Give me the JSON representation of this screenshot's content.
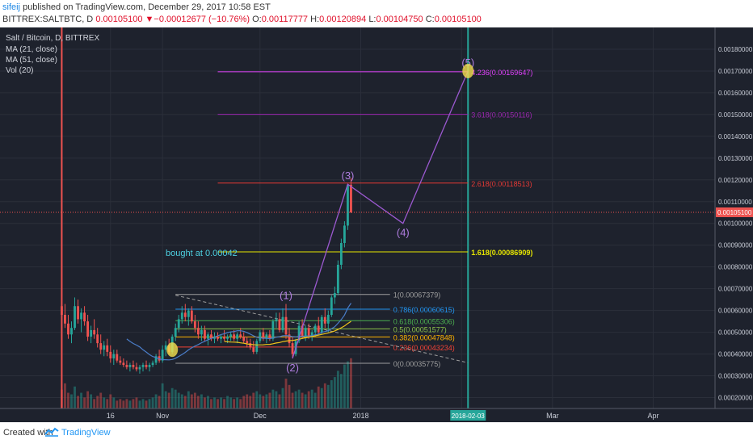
{
  "header": {
    "author": "sifeij",
    "published": " published on TradingView.com, December 29, 2017 10:58 EST",
    "symbol": "BITTREX:SALTBTC, D",
    "last": "0.00105100",
    "change_arrow": "▼",
    "change": "−0.00012677 (−10.76%)",
    "o_label": "O:",
    "o": "0.00117777",
    "h_label": "H:",
    "h": "0.00120894",
    "l_label": "L:",
    "l": "0.00104750",
    "c_label": "C:",
    "c": "0.00105100"
  },
  "legend": {
    "title": "Salt / Bitcoin, D, BITTREX",
    "ma21": "MA (21, close)",
    "ma51": "MA (51, close)",
    "vol": "Vol (20)"
  },
  "footer": {
    "created_with": "Created with",
    "brand": "TradingView"
  },
  "colors": {
    "background": "#1e222d",
    "grid": "#2b2f3a",
    "axis_text": "#c8ccd6",
    "candle_up": "#26a69a",
    "candle_down": "#ef5350",
    "ma21": "#4a7dc9",
    "ma51": "#f0c419",
    "wave": "#9b59d0",
    "fib_green": "#2e7d32"
  },
  "chart_data": {
    "type": "candlestick",
    "symbol": "SALTBTC",
    "interval": "D",
    "exchange": "BITTREX",
    "ylim": [
      0.00015,
      0.0019
    ],
    "y_ticks": [
      "0.00180000",
      "0.00170000",
      "0.00160000",
      "0.00150000",
      "0.00140000",
      "0.00130000",
      "0.00120000",
      "0.00110000",
      "0.00100000",
      "0.00090000",
      "0.00080000",
      "0.00070000",
      "0.00060000",
      "0.00050000",
      "0.00040000",
      "0.00030000",
      "0.00020000"
    ],
    "x_ticks": [
      "16",
      "Nov",
      "Dec",
      "2018",
      "Feb",
      "Mar",
      "Apr"
    ],
    "x_tick_dates": [
      "2017-10-16",
      "2017-11-01",
      "2017-12-01",
      "2018-01-01",
      "2018-02-01",
      "2018-03-01",
      "2018-04-01"
    ],
    "xlim": [
      "2017-09-12",
      "2018-04-20"
    ],
    "vertical_marker": {
      "date": "2018-02-03",
      "label": "2018-02-03",
      "color": "#26a69a"
    },
    "start_marker": {
      "date": "2017-10-01",
      "color": "#ef5350"
    },
    "current_price": {
      "value": 0.001051,
      "label": "0.00105100"
    },
    "candles": [
      {
        "d": "2017-10-01",
        "o": 0.00062,
        "h": 0.00069,
        "l": 0.00056,
        "c": 0.00058
      },
      {
        "d": "2017-10-02",
        "o": 0.00058,
        "h": 0.00063,
        "l": 0.00052,
        "c": 0.00054
      },
      {
        "d": "2017-10-03",
        "o": 0.00054,
        "h": 0.00058,
        "l": 0.00047,
        "c": 0.00049
      },
      {
        "d": "2017-10-04",
        "o": 0.00049,
        "h": 0.00055,
        "l": 0.00045,
        "c": 0.00052
      },
      {
        "d": "2017-10-05",
        "o": 0.00052,
        "h": 0.00066,
        "l": 0.00051,
        "c": 0.00062
      },
      {
        "d": "2017-10-06",
        "o": 0.00062,
        "h": 0.00065,
        "l": 0.00054,
        "c": 0.00056
      },
      {
        "d": "2017-10-07",
        "o": 0.00056,
        "h": 0.00061,
        "l": 0.0005,
        "c": 0.00059
      },
      {
        "d": "2017-10-08",
        "o": 0.00059,
        "h": 0.00062,
        "l": 0.00053,
        "c": 0.00055
      },
      {
        "d": "2017-10-09",
        "o": 0.00055,
        "h": 0.00058,
        "l": 0.00046,
        "c": 0.00048
      },
      {
        "d": "2017-10-10",
        "o": 0.00048,
        "h": 0.00053,
        "l": 0.00045,
        "c": 0.00051
      },
      {
        "d": "2017-10-11",
        "o": 0.00051,
        "h": 0.00056,
        "l": 0.00047,
        "c": 0.00049
      },
      {
        "d": "2017-10-12",
        "o": 0.00049,
        "h": 0.00052,
        "l": 0.00043,
        "c": 0.00045
      },
      {
        "d": "2017-10-13",
        "o": 0.00045,
        "h": 0.00049,
        "l": 0.0004,
        "c": 0.00042
      },
      {
        "d": "2017-10-14",
        "o": 0.00042,
        "h": 0.00046,
        "l": 0.00039,
        "c": 0.00044
      },
      {
        "d": "2017-10-15",
        "o": 0.00044,
        "h": 0.00047,
        "l": 0.00039,
        "c": 0.00041
      },
      {
        "d": "2017-10-16",
        "o": 0.00041,
        "h": 0.00044,
        "l": 0.00036,
        "c": 0.00038
      },
      {
        "d": "2017-10-17",
        "o": 0.00038,
        "h": 0.00042,
        "l": 0.00035,
        "c": 0.0004
      },
      {
        "d": "2017-10-18",
        "o": 0.0004,
        "h": 0.00042,
        "l": 0.00036,
        "c": 0.00037
      },
      {
        "d": "2017-10-19",
        "o": 0.00037,
        "h": 0.00039,
        "l": 0.00035,
        "c": 0.00036
      },
      {
        "d": "2017-10-20",
        "o": 0.00036,
        "h": 0.00038,
        "l": 0.00034,
        "c": 0.00035
      },
      {
        "d": "2017-10-21",
        "o": 0.00035,
        "h": 0.00037,
        "l": 0.00033,
        "c": 0.00034
      },
      {
        "d": "2017-10-22",
        "o": 0.00034,
        "h": 0.00036,
        "l": 0.00032,
        "c": 0.00035
      },
      {
        "d": "2017-10-23",
        "o": 0.00035,
        "h": 0.00037,
        "l": 0.00033,
        "c": 0.00034
      },
      {
        "d": "2017-10-24",
        "o": 0.00034,
        "h": 0.00036,
        "l": 0.00032,
        "c": 0.00033
      },
      {
        "d": "2017-10-25",
        "o": 0.00033,
        "h": 0.00035,
        "l": 0.00031,
        "c": 0.00034
      },
      {
        "d": "2017-10-26",
        "o": 0.00034,
        "h": 0.00036,
        "l": 0.00032,
        "c": 0.00035
      },
      {
        "d": "2017-10-27",
        "o": 0.00035,
        "h": 0.00037,
        "l": 0.00033,
        "c": 0.00034
      },
      {
        "d": "2017-10-28",
        "o": 0.00034,
        "h": 0.00036,
        "l": 0.00032,
        "c": 0.00035
      },
      {
        "d": "2017-10-29",
        "o": 0.00035,
        "h": 0.00037,
        "l": 0.00034,
        "c": 0.00036
      },
      {
        "d": "2017-10-30",
        "o": 0.00036,
        "h": 0.0004,
        "l": 0.00035,
        "c": 0.00039
      },
      {
        "d": "2017-10-31",
        "o": 0.00039,
        "h": 0.00042,
        "l": 0.00036,
        "c": 0.00037
      },
      {
        "d": "2017-11-01",
        "o": 0.00037,
        "h": 0.00044,
        "l": 0.00036,
        "c": 0.00042
      },
      {
        "d": "2017-11-02",
        "o": 0.00042,
        "h": 0.00046,
        "l": 0.00039,
        "c": 0.00044
      },
      {
        "d": "2017-11-03",
        "o": 0.00044,
        "h": 0.00047,
        "l": 0.0004,
        "c": 0.00041
      },
      {
        "d": "2017-11-04",
        "o": 0.00041,
        "h": 0.00049,
        "l": 0.0004,
        "c": 0.00048
      },
      {
        "d": "2017-11-05",
        "o": 0.00048,
        "h": 0.00054,
        "l": 0.00046,
        "c": 0.00052
      },
      {
        "d": "2017-11-06",
        "o": 0.00052,
        "h": 0.00058,
        "l": 0.0005,
        "c": 0.00056
      },
      {
        "d": "2017-11-07",
        "o": 0.00056,
        "h": 0.00062,
        "l": 0.00054,
        "c": 0.00059
      },
      {
        "d": "2017-11-08",
        "o": 0.00059,
        "h": 0.00063,
        "l": 0.00055,
        "c": 0.00057
      },
      {
        "d": "2017-11-09",
        "o": 0.00057,
        "h": 0.00061,
        "l": 0.00053,
        "c": 0.0006
      },
      {
        "d": "2017-11-10",
        "o": 0.0006,
        "h": 0.00062,
        "l": 0.00054,
        "c": 0.00055
      },
      {
        "d": "2017-11-11",
        "o": 0.00055,
        "h": 0.00058,
        "l": 0.0005,
        "c": 0.00052
      },
      {
        "d": "2017-11-12",
        "o": 0.00052,
        "h": 0.00055,
        "l": 0.00047,
        "c": 0.00049
      },
      {
        "d": "2017-11-13",
        "o": 0.00049,
        "h": 0.00053,
        "l": 0.00046,
        "c": 0.00051
      },
      {
        "d": "2017-11-14",
        "o": 0.00051,
        "h": 0.00053,
        "l": 0.00046,
        "c": 0.00047
      },
      {
        "d": "2017-11-15",
        "o": 0.00047,
        "h": 0.0005,
        "l": 0.00044,
        "c": 0.00049
      },
      {
        "d": "2017-11-16",
        "o": 0.00049,
        "h": 0.00051,
        "l": 0.00046,
        "c": 0.00047
      },
      {
        "d": "2017-11-17",
        "o": 0.00047,
        "h": 0.0005,
        "l": 0.00045,
        "c": 0.00048
      },
      {
        "d": "2017-11-18",
        "o": 0.00048,
        "h": 0.0005,
        "l": 0.00046,
        "c": 0.00047
      },
      {
        "d": "2017-11-19",
        "o": 0.00047,
        "h": 0.00049,
        "l": 0.00045,
        "c": 0.00048
      },
      {
        "d": "2017-11-20",
        "o": 0.00048,
        "h": 0.00051,
        "l": 0.00046,
        "c": 0.00047
      },
      {
        "d": "2017-11-21",
        "o": 0.00047,
        "h": 0.00049,
        "l": 0.00045,
        "c": 0.00048
      },
      {
        "d": "2017-11-22",
        "o": 0.00048,
        "h": 0.0005,
        "l": 0.00046,
        "c": 0.00049
      },
      {
        "d": "2017-11-23",
        "o": 0.00049,
        "h": 0.00051,
        "l": 0.00046,
        "c": 0.00047
      },
      {
        "d": "2017-11-24",
        "o": 0.00047,
        "h": 0.0005,
        "l": 0.00045,
        "c": 0.00049
      },
      {
        "d": "2017-11-25",
        "o": 0.00049,
        "h": 0.00052,
        "l": 0.00047,
        "c": 0.00048
      },
      {
        "d": "2017-11-26",
        "o": 0.00048,
        "h": 0.0005,
        "l": 0.00045,
        "c": 0.00046
      },
      {
        "d": "2017-11-27",
        "o": 0.00046,
        "h": 0.00048,
        "l": 0.00043,
        "c": 0.00045
      },
      {
        "d": "2017-11-28",
        "o": 0.00045,
        "h": 0.00047,
        "l": 0.00042,
        "c": 0.00043
      },
      {
        "d": "2017-11-29",
        "o": 0.00043,
        "h": 0.00046,
        "l": 0.0004,
        "c": 0.00041
      },
      {
        "d": "2017-11-30",
        "o": 0.00041,
        "h": 0.00047,
        "l": 0.0004,
        "c": 0.00046
      },
      {
        "d": "2017-12-01",
        "o": 0.00046,
        "h": 0.00051,
        "l": 0.00045,
        "c": 0.0005
      },
      {
        "d": "2017-12-02",
        "o": 0.0005,
        "h": 0.00052,
        "l": 0.00046,
        "c": 0.00047
      },
      {
        "d": "2017-12-03",
        "o": 0.00047,
        "h": 0.0005,
        "l": 0.00045,
        "c": 0.00049
      },
      {
        "d": "2017-12-04",
        "o": 0.00049,
        "h": 0.00051,
        "l": 0.00046,
        "c": 0.00047
      },
      {
        "d": "2017-12-05",
        "o": 0.00047,
        "h": 0.00056,
        "l": 0.00046,
        "c": 0.00055
      },
      {
        "d": "2017-12-06",
        "o": 0.00055,
        "h": 0.00059,
        "l": 0.00052,
        "c": 0.00056
      },
      {
        "d": "2017-12-07",
        "o": 0.00056,
        "h": 0.00059,
        "l": 0.0005,
        "c": 0.00051
      },
      {
        "d": "2017-12-08",
        "o": 0.00051,
        "h": 0.00061,
        "l": 0.0005,
        "c": 0.00057
      },
      {
        "d": "2017-12-09",
        "o": 0.00057,
        "h": 0.00063,
        "l": 0.00047,
        "c": 0.00049
      },
      {
        "d": "2017-12-10",
        "o": 0.00049,
        "h": 0.00052,
        "l": 0.00043,
        "c": 0.00045
      },
      {
        "d": "2017-12-11",
        "o": 0.00045,
        "h": 0.00048,
        "l": 0.00038,
        "c": 0.0004
      },
      {
        "d": "2017-12-12",
        "o": 0.0004,
        "h": 0.00047,
        "l": 0.00039,
        "c": 0.00046
      },
      {
        "d": "2017-12-13",
        "o": 0.00046,
        "h": 0.00055,
        "l": 0.00045,
        "c": 0.00053
      },
      {
        "d": "2017-12-14",
        "o": 0.00053,
        "h": 0.00056,
        "l": 0.00047,
        "c": 0.00048
      },
      {
        "d": "2017-12-15",
        "o": 0.00048,
        "h": 0.00053,
        "l": 0.00046,
        "c": 0.00052
      },
      {
        "d": "2017-12-16",
        "o": 0.00052,
        "h": 0.00054,
        "l": 0.00047,
        "c": 0.00048
      },
      {
        "d": "2017-12-17",
        "o": 0.00048,
        "h": 0.00051,
        "l": 0.00046,
        "c": 0.0005
      },
      {
        "d": "2017-12-18",
        "o": 0.0005,
        "h": 0.00054,
        "l": 0.00048,
        "c": 0.00053
      },
      {
        "d": "2017-12-19",
        "o": 0.00053,
        "h": 0.00057,
        "l": 0.00049,
        "c": 0.0005
      },
      {
        "d": "2017-12-20",
        "o": 0.0005,
        "h": 0.00058,
        "l": 0.00049,
        "c": 0.00057
      },
      {
        "d": "2017-12-21",
        "o": 0.00057,
        "h": 0.00061,
        "l": 0.00052,
        "c": 0.00054
      },
      {
        "d": "2017-12-22",
        "o": 0.00054,
        "h": 0.0006,
        "l": 0.0005,
        "c": 0.00058
      },
      {
        "d": "2017-12-23",
        "o": 0.00058,
        "h": 0.00067,
        "l": 0.00057,
        "c": 0.00066
      },
      {
        "d": "2017-12-24",
        "o": 0.00066,
        "h": 0.00071,
        "l": 0.00063,
        "c": 0.00068
      },
      {
        "d": "2017-12-25",
        "o": 0.00068,
        "h": 0.00083,
        "l": 0.00067,
        "c": 0.00081
      },
      {
        "d": "2017-12-26",
        "o": 0.00081,
        "h": 0.00093,
        "l": 0.00079,
        "c": 0.00091
      },
      {
        "d": "2017-12-27",
        "o": 0.00091,
        "h": 0.00101,
        "l": 0.00089,
        "c": 0.00099
      },
      {
        "d": "2017-12-28",
        "o": 0.00099,
        "h": 0.00118,
        "l": 0.00097,
        "c": 0.001178
      },
      {
        "d": "2017-12-29",
        "o": 0.00117777,
        "h": 0.00120894,
        "l": 0.0010475,
        "c": 0.001051
      }
    ],
    "volume": [
      1.2,
      1.6,
      1.0,
      0.9,
      1.4,
      0.8,
      1.0,
      0.7,
      1.1,
      0.9,
      0.6,
      0.8,
      1.0,
      0.7,
      0.6,
      0.9,
      0.7,
      0.5,
      0.6,
      0.5,
      0.6,
      0.5,
      0.6,
      0.7,
      0.5,
      0.6,
      0.5,
      0.6,
      0.7,
      0.9,
      0.8,
      1.6,
      1.1,
      1.0,
      1.3,
      1.2,
      1.0,
      0.9,
      0.8,
      1.1,
      0.9,
      1.0,
      0.8,
      0.9,
      0.7,
      0.8,
      0.6,
      0.7,
      0.6,
      0.7,
      0.6,
      0.8,
      0.7,
      0.6,
      0.7,
      0.6,
      0.8,
      0.9,
      0.8,
      1.0,
      1.1,
      0.9,
      0.8,
      0.9,
      1.0,
      1.2,
      1.1,
      0.9,
      1.3,
      1.9,
      1.5,
      1.0,
      1.1,
      1.2,
      1.0,
      0.9,
      1.1,
      1.2,
      1.0,
      1.4,
      1.3,
      1.6,
      1.5,
      1.8,
      2.0,
      2.4,
      2.2,
      2.8,
      3.0,
      3.2
    ],
    "vol_scale_max": 3.6,
    "fib_extension": {
      "levels": [
        {
          "ratio": "2.618",
          "price": 0.00118513,
          "label": "2.618(0.00118513)",
          "color": "#e53935"
        },
        {
          "ratio": "3.618",
          "price": 0.00150116,
          "label": "3.618(0.00150116)",
          "color": "#9c27b0"
        },
        {
          "ratio": "4.236",
          "price": 0.00169647,
          "label": "4.236(0.00169647)",
          "color": "#e040fb"
        },
        {
          "ratio": "1.618",
          "price": 0.00086909,
          "label": "1.618(0.00086909)",
          "color": "#e6e600"
        }
      ],
      "start_date": "2017-11-18",
      "end_date": "2018-02-03"
    },
    "fib_retracement": {
      "levels": [
        {
          "ratio": "1",
          "price": 0.00067379,
          "label": "1(0.00067379)",
          "color": "#9e9e9e"
        },
        {
          "ratio": "0.786",
          "price": 0.00060615,
          "label": "0.786(0.00060615)",
          "color": "#2196f3"
        },
        {
          "ratio": "0.618",
          "price": 0.00055306,
          "label": "0.618(0.00055306)",
          "color": "#4caf50"
        },
        {
          "ratio": "0.5",
          "price": 0.00051577,
          "label": "0.5(0.00051577)",
          "color": "#8bc34a"
        },
        {
          "ratio": "0.382",
          "price": 0.00047848,
          "label": "0.382(0.00047848)",
          "color": "#ffb300"
        },
        {
          "ratio": "0.236",
          "price": 0.00043234,
          "label": "0.236(0.00043234)",
          "color": "#f44336"
        },
        {
          "ratio": "0",
          "price": 0.00035775,
          "label": "0(0.00035775)",
          "color": "#9e9e9e"
        }
      ],
      "start_date": "2017-11-05",
      "end_date": "2018-01-10"
    },
    "trendline_dashed": {
      "from": {
        "d": "2017-11-05",
        "p": 0.00067
      },
      "to": {
        "d": "2018-02-03",
        "p": 0.00036
      }
    },
    "elliott_waves": [
      {
        "label": "(1)",
        "d": "2017-12-09",
        "p": 0.00063
      },
      {
        "label": "(2)",
        "d": "2017-12-11",
        "p": 0.00038
      },
      {
        "label": "(3)",
        "d": "2017-12-28",
        "p": 0.00118
      },
      {
        "label": "(4)",
        "d": "2018-01-14",
        "p": 0.001
      },
      {
        "label": "(5)",
        "d": "2018-02-03",
        "p": 0.0017
      }
    ],
    "wave_path": [
      {
        "d": "2017-12-11",
        "p": 0.00038
      },
      {
        "d": "2017-12-28",
        "p": 0.00118
      },
      {
        "d": "2018-01-14",
        "p": 0.001
      },
      {
        "d": "2018-02-03",
        "p": 0.0017
      }
    ],
    "annotation": {
      "text": "bought at 0.00042",
      "d": "2017-11-13",
      "p": 0.00085,
      "color": "#4dd0e1"
    },
    "highlight_circles": [
      {
        "d": "2017-11-04",
        "p": 0.00042,
        "color": "#f4e04d"
      },
      {
        "d": "2018-02-03",
        "p": 0.0017,
        "color": "#f4e04d"
      }
    ]
  }
}
